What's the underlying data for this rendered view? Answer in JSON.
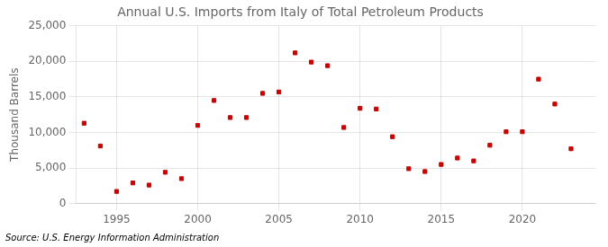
{
  "chart_data": {
    "type": "scatter",
    "title": "Annual U.S. Imports from Italy of Total Petroleum Products",
    "ylabel": "Thousand Barrels",
    "annotations": [
      "Source: U.S. Energy Information Administration"
    ],
    "x": [
      1993,
      1994,
      1995,
      1996,
      1997,
      1998,
      1999,
      2000,
      2001,
      2002,
      2003,
      2004,
      2005,
      2006,
      2007,
      2008,
      2009,
      2010,
      2011,
      2012,
      2013,
      2014,
      2015,
      2016,
      2017,
      2018,
      2019,
      2020,
      2021,
      2022,
      2023
    ],
    "values": [
      11300,
      8100,
      1700,
      2900,
      2600,
      4400,
      3500,
      11000,
      14500,
      12100,
      12100,
      15500,
      15700,
      21200,
      19900,
      19400,
      10700,
      13400,
      13300,
      9400,
      4900,
      4500,
      5500,
      6400,
      6000,
      8200,
      10100,
      10100,
      17500,
      14000,
      7700
    ],
    "color": "#cc0000",
    "marker": "square",
    "xlim": [
      1992.5,
      2024.5
    ],
    "xticks": [
      1995,
      2000,
      2005,
      2010,
      2015,
      2020
    ],
    "ylim": [
      0,
      25000
    ],
    "yticks": [
      0,
      {
        "value": 5000,
        "label": "5,000"
      },
      {
        "value": 10000,
        "label": "10,000"
      },
      {
        "value": 15000,
        "label": "15,000"
      },
      {
        "value": 20000,
        "label": "20,000"
      },
      {
        "value": 25000,
        "label": "25,000"
      }
    ],
    "grid": true
  }
}
